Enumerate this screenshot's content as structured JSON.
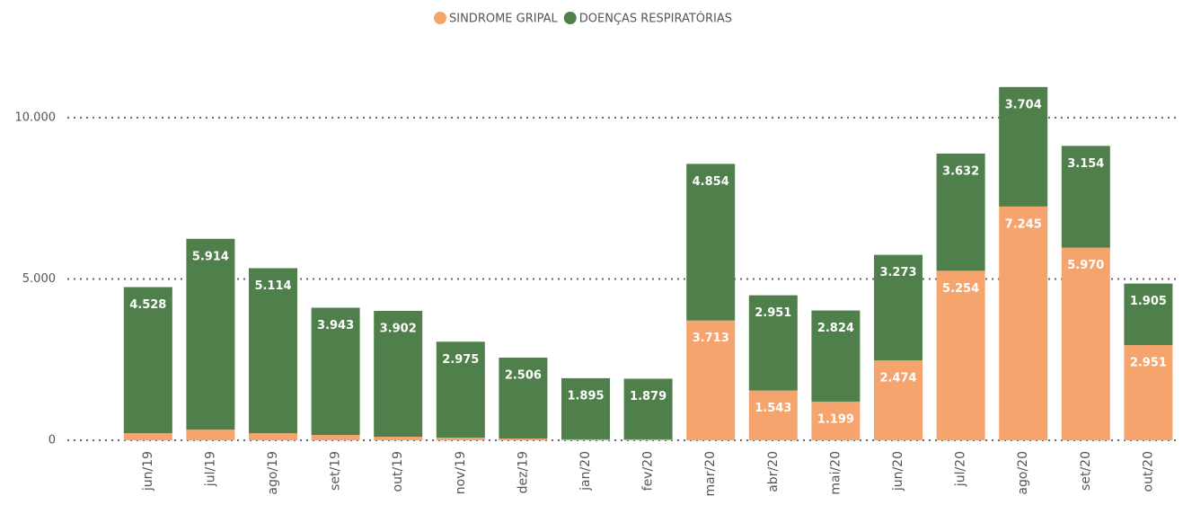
{
  "chart_data": {
    "type": "stacked_bar",
    "categories": [
      "jun/19",
      "jul/19",
      "ago/19",
      "set/19",
      "out/19",
      "nov/19",
      "dez/19",
      "jan/20",
      "fev/20",
      "mar/20",
      "abr/20",
      "mai/20",
      "jun/20",
      "jul/20",
      "ago/20",
      "set/20",
      "out/20"
    ],
    "series": [
      {
        "name": "SINDROME GRIPAL",
        "color": "#f4a46c",
        "values": [
          220,
          330,
          220,
          165,
          110,
          80,
          55,
          30,
          30,
          3713,
          1543,
          1199,
          2474,
          5254,
          7245,
          5970,
          2951
        ],
        "value_labels": [
          null,
          null,
          null,
          null,
          null,
          null,
          null,
          null,
          null,
          "3.713",
          "1.543",
          "1.199",
          "2.474",
          "5.254",
          "7.245",
          "5.970",
          "2.951"
        ]
      },
      {
        "name": "DOENÇAS RESPIRATÓRIAS",
        "color": "#4f7f4a",
        "values": [
          4528,
          5914,
          5114,
          3943,
          3902,
          2975,
          2506,
          1895,
          1879,
          4854,
          2951,
          2824,
          3273,
          3632,
          3704,
          3154,
          1905
        ],
        "value_labels": [
          "4.528",
          "5.914",
          "5.114",
          "3.943",
          "3.902",
          "2.975",
          "2.506",
          "1.895",
          "1.879",
          "4.854",
          "2.951",
          "2.824",
          "3.273",
          "3.632",
          "3.704",
          "3.154",
          "1.905"
        ]
      }
    ],
    "ylim": [
      0,
      11000
    ],
    "yticks": [
      0,
      {
        "value": 5000,
        "label": "5.000"
      },
      {
        "value": 10000,
        "label": "10.000"
      }
    ],
    "grid": true,
    "legend": "top"
  }
}
